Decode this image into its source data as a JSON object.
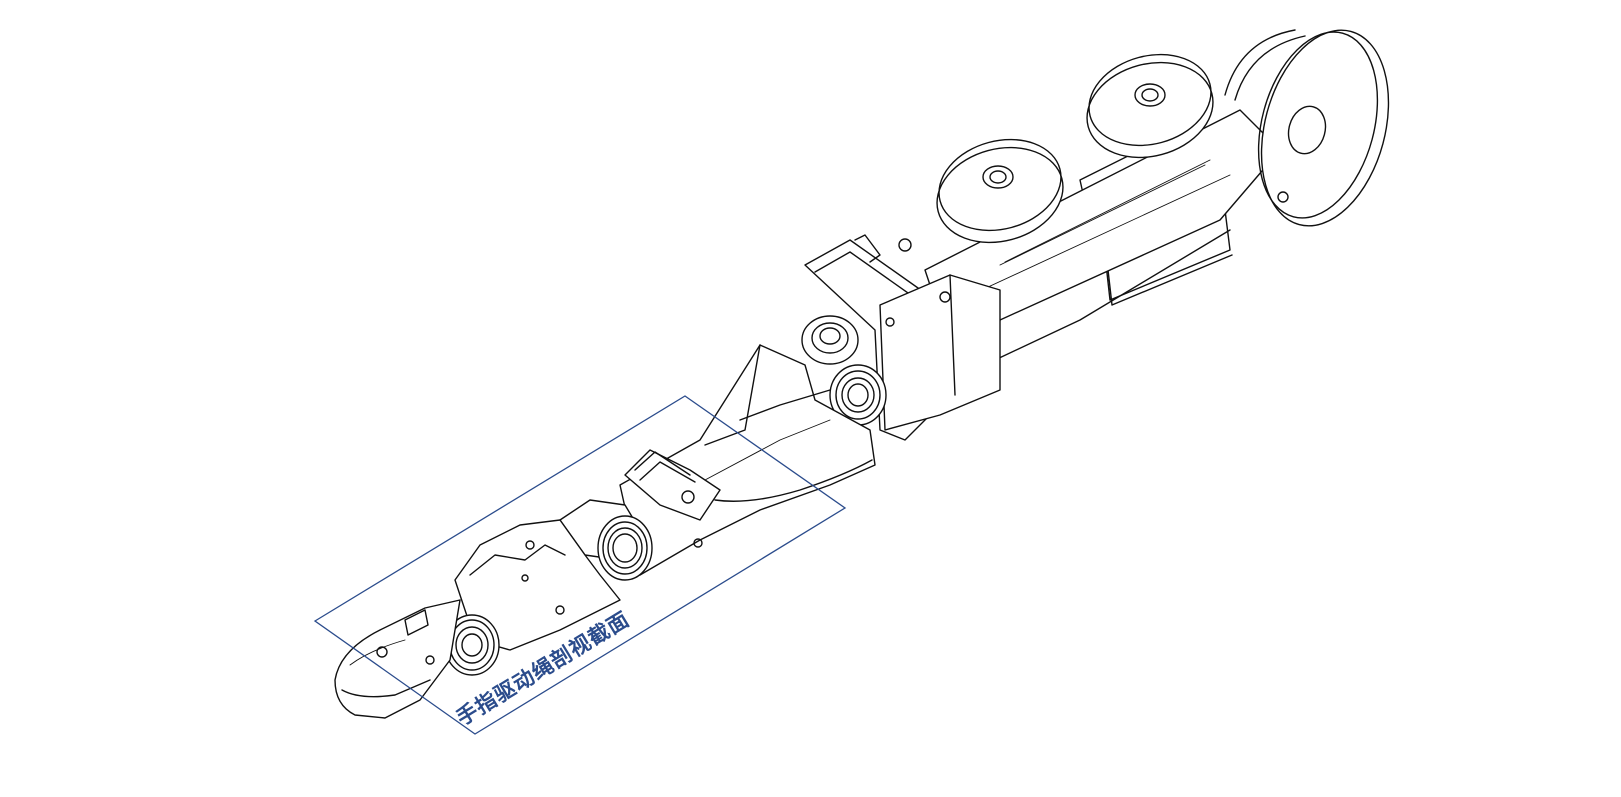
{
  "diagram": {
    "section_label": "手指驱动绳剖视截面",
    "colors": {
      "line": "#111111",
      "section_plane": "#2b4c8c",
      "label_text": "#2b4c8c",
      "background": "#ffffff"
    }
  }
}
